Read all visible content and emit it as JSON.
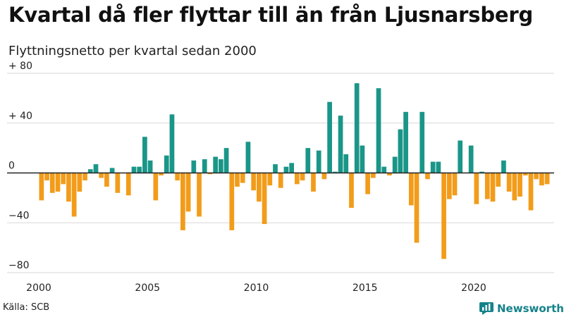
{
  "title": "Kvartal då fler flyttar till än från Ljusnarsberg",
  "subtitle": "Flyttningsnetto per kvartal sedan 2000",
  "source": "Källa: SCB",
  "brand": "Newsworthy",
  "colors": {
    "positive": "#1a9688",
    "negative": "#f29c1a",
    "grid": "#d7d7d7",
    "zero": "#222222",
    "brand": "#15828a"
  },
  "chart_data": {
    "type": "bar",
    "ylim": [
      -80,
      80
    ],
    "yticks": [
      80,
      40,
      0,
      -40,
      -80
    ],
    "ytick_labels": [
      "+ 80",
      "+ 40",
      "0",
      "−40",
      "−80"
    ],
    "xticks": [
      2000,
      2005,
      2010,
      2015,
      2020
    ],
    "start_year": 2000,
    "grid": true,
    "values": [
      -22,
      -6,
      -16,
      -15,
      -9,
      -23,
      -35,
      -15,
      -6,
      3,
      7,
      -4,
      -11,
      4,
      -16,
      0,
      -18,
      5,
      5,
      29,
      10,
      -22,
      -2,
      14,
      47,
      -6,
      -46,
      -31,
      10,
      -35,
      11,
      -1,
      13,
      11,
      20,
      -46,
      -11,
      -8,
      25,
      -14,
      -23,
      -41,
      -10,
      7,
      -12,
      5,
      8,
      -9,
      -6,
      20,
      -15,
      18,
      -5,
      57,
      1,
      46,
      15,
      -28,
      72,
      22,
      -17,
      -4,
      68,
      5,
      -2,
      13,
      35,
      49,
      -26,
      -56,
      49,
      -5,
      9,
      9,
      -69,
      -21,
      -18,
      26,
      0,
      22,
      -25,
      1,
      -21,
      -23,
      -11,
      10,
      -15,
      -22,
      -19,
      -2,
      -30,
      -5,
      -10,
      -9
    ]
  }
}
